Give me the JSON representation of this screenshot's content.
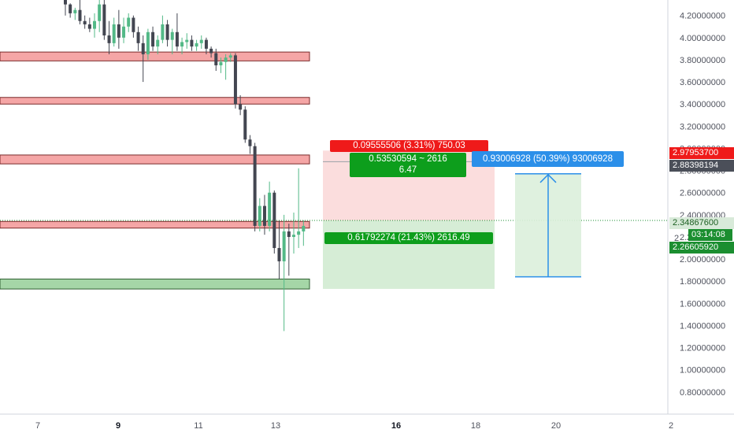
{
  "chart_data": {
    "type": "candlestick",
    "y_axis": {
      "range": [
        0.6,
        4.34
      ],
      "ticks": [
        "4.20000000",
        "4.00000000",
        "3.80000000",
        "3.60000000",
        "3.40000000",
        "3.20000000",
        "3.00000000",
        "2.80000000",
        "2.60000000",
        "2.40000000",
        "2.20000000",
        "2.00000000",
        "1.80000000",
        "1.60000000",
        "1.40000000",
        "1.20000000",
        "1.00000000",
        "0.80000000"
      ]
    },
    "x_axis": {
      "ticks": [
        {
          "label": "7",
          "bold": false
        },
        {
          "label": "9",
          "bold": true
        },
        {
          "label": "11",
          "bold": false
        },
        {
          "label": "13",
          "bold": false
        },
        {
          "label": "16",
          "bold": true
        },
        {
          "label": "18",
          "bold": false
        },
        {
          "label": "20",
          "bold": false
        },
        {
          "label": "2",
          "bold": false
        }
      ]
    },
    "candles": [
      [
        4.35,
        4.38,
        4.2,
        4.3
      ],
      [
        4.3,
        4.31,
        4.18,
        4.22
      ],
      [
        4.22,
        4.27,
        4.16,
        4.25
      ],
      [
        4.25,
        4.34,
        4.12,
        4.15
      ],
      [
        4.15,
        4.2,
        4.08,
        4.12
      ],
      [
        4.12,
        4.18,
        4.05,
        4.08
      ],
      [
        4.08,
        4.22,
        4.0,
        4.15
      ],
      [
        4.15,
        4.36,
        4.05,
        4.3
      ],
      [
        4.3,
        4.34,
        3.98,
        4.02
      ],
      [
        4.02,
        4.15,
        3.85,
        3.95
      ],
      [
        3.95,
        4.18,
        3.92,
        4.12
      ],
      [
        4.12,
        4.25,
        3.9,
        4.0
      ],
      [
        4.0,
        4.18,
        3.95,
        4.1
      ],
      [
        4.1,
        4.22,
        4.05,
        4.18
      ],
      [
        4.18,
        4.2,
        4.0,
        4.05
      ],
      [
        4.05,
        4.1,
        3.88,
        3.95
      ],
      [
        3.95,
        4.02,
        3.6,
        3.85
      ],
      [
        3.85,
        4.08,
        3.8,
        4.05
      ],
      [
        4.05,
        4.1,
        3.88,
        3.92
      ],
      [
        3.92,
        4.02,
        3.85,
        3.98
      ],
      [
        3.98,
        4.2,
        3.95,
        4.12
      ],
      [
        4.12,
        4.16,
        3.92,
        3.98
      ],
      [
        3.98,
        4.08,
        3.85,
        4.05
      ],
      [
        4.05,
        4.22,
        3.88,
        3.92
      ],
      [
        3.92,
        4.0,
        3.85,
        3.96
      ],
      [
        3.96,
        4.04,
        3.9,
        3.98
      ],
      [
        3.98,
        4.02,
        3.88,
        3.92
      ],
      [
        3.92,
        3.98,
        3.88,
        3.95
      ],
      [
        3.95,
        4.02,
        3.9,
        3.98
      ],
      [
        3.98,
        4.0,
        3.85,
        3.9
      ],
      [
        3.9,
        3.92,
        3.82,
        3.86
      ],
      [
        3.86,
        3.9,
        3.7,
        3.75
      ],
      [
        3.75,
        3.82,
        3.68,
        3.78
      ],
      [
        3.78,
        3.85,
        3.62,
        3.82
      ],
      [
        3.82,
        3.86,
        3.78,
        3.84
      ],
      [
        3.84,
        3.86,
        3.36,
        3.4
      ],
      [
        3.4,
        3.48,
        3.3,
        3.35
      ],
      [
        3.35,
        3.38,
        3.05,
        3.08
      ],
      [
        3.08,
        3.12,
        2.95,
        3.02
      ],
      [
        3.02,
        3.05,
        2.25,
        2.3
      ],
      [
        2.3,
        2.55,
        2.25,
        2.48
      ],
      [
        2.48,
        2.58,
        2.22,
        2.3
      ],
      [
        2.3,
        2.7,
        2.25,
        2.6
      ],
      [
        2.6,
        2.62,
        2.05,
        2.1
      ],
      [
        2.1,
        2.35,
        1.82,
        1.98
      ],
      [
        1.98,
        2.4,
        1.35,
        2.25
      ],
      [
        2.25,
        2.32,
        1.85,
        2.2
      ],
      [
        2.2,
        2.42,
        2.05,
        2.22
      ],
      [
        2.22,
        2.82,
        2.1,
        2.25
      ],
      [
        2.25,
        2.35,
        2.12,
        2.3
      ]
    ],
    "zones": [
      {
        "low": 3.79,
        "high": 3.87,
        "color": "red"
      },
      {
        "low": 3.4,
        "high": 3.46,
        "color": "red"
      },
      {
        "low": 2.86,
        "high": 2.94,
        "color": "red"
      },
      {
        "low": 2.28,
        "high": 2.34,
        "color": "red"
      },
      {
        "low": 1.73,
        "high": 1.82,
        "color": "green"
      }
    ],
    "position": {
      "entry": 2.3487,
      "stop": 2.9795,
      "target": 1.7308,
      "stop_label": "0.09555506 (3.31%) 750.03",
      "ratio_label_line1": "0.53530594 ~ 2616",
      "ratio_label_line2": "6.47",
      "target_label": "0.61792274 (21.43%) 2616.49"
    },
    "price_range": {
      "from": 1.84,
      "to": 2.77,
      "label": "0.93006928 (50.39%) 93006928"
    },
    "axis_labels": {
      "red": "2.97953700",
      "dark": "2.88398194",
      "current_price": "2.34867600",
      "countdown": "03:14:08",
      "green": "2.26605920",
      "partial": "2"
    },
    "current_price": 2.3487,
    "colors": {
      "up": "#53b987",
      "down": "#434651",
      "zone_red": "#f5a6a6",
      "zone_green": "#a5d6a7",
      "label_red": "#ef1a1a",
      "label_green": "#0d9e1c",
      "label_blue": "#2b8fe9",
      "label_dark": "#4b4f59",
      "price_line": "#1b8e30"
    }
  }
}
